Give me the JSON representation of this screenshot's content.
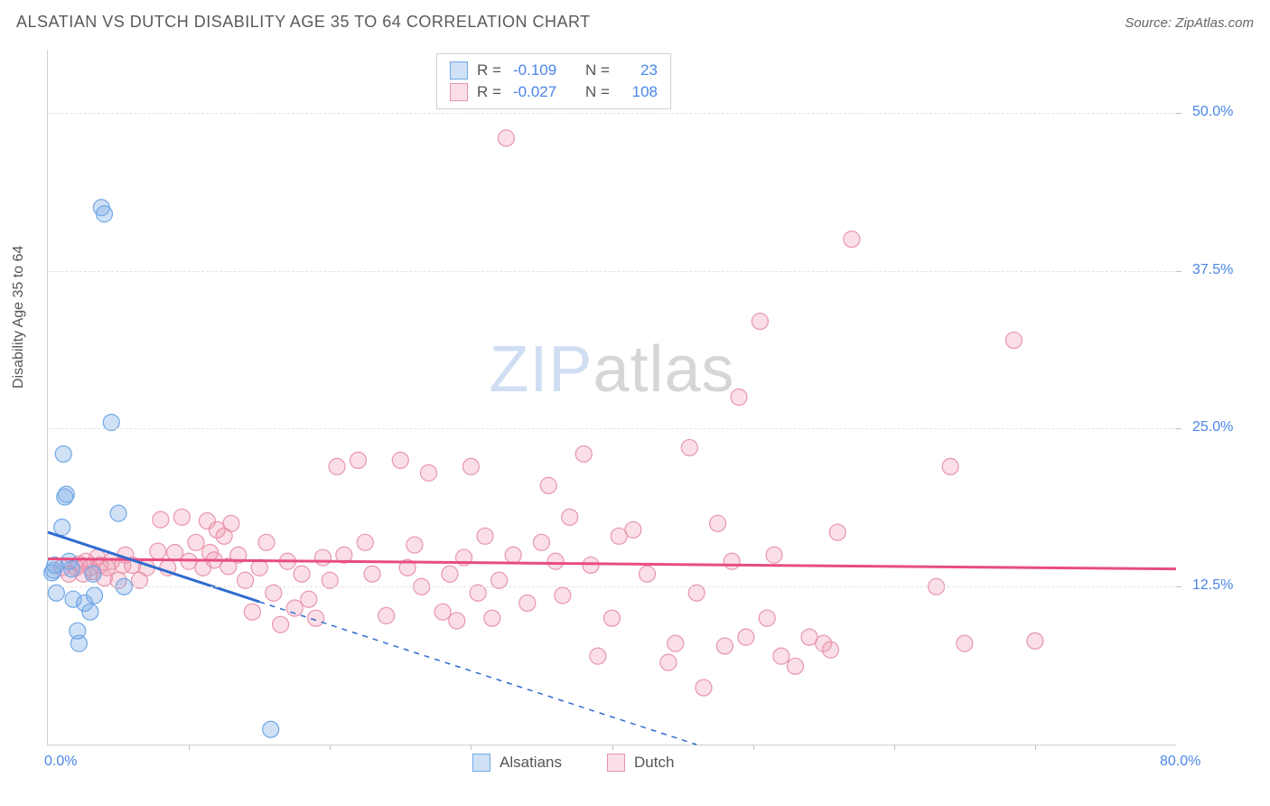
{
  "header": {
    "title": "ALSATIAN VS DUTCH DISABILITY AGE 35 TO 64 CORRELATION CHART",
    "source_prefix": "Source: ",
    "source_name": "ZipAtlas.com"
  },
  "axes": {
    "y_label": "Disability Age 35 to 64",
    "x_min": 0.0,
    "x_max": 80.0,
    "y_min": 0.0,
    "y_max": 55.0,
    "y_ticks": [
      12.5,
      25.0,
      37.5,
      50.0
    ],
    "y_tick_labels": [
      "12.5%",
      "25.0%",
      "37.5%",
      "50.0%"
    ],
    "x_tick_labels_ends": {
      "left": "0.0%",
      "right": "80.0%"
    },
    "x_minor_tick_step": 10.0,
    "grid_color": "#e2e2e2",
    "axis_color": "#d0d0d0",
    "tick_label_color": "#4a86e8",
    "label_fontsize": 16
  },
  "colors": {
    "series_a_fill": "rgba(120,170,230,0.35)",
    "series_a_stroke": "#6fa8e8",
    "series_a_line": "#2e6bd0",
    "series_b_fill": "rgba(240,150,175,0.30)",
    "series_b_stroke": "#e895ac",
    "series_b_line": "#e84d80",
    "background": "#ffffff"
  },
  "marker": {
    "radius": 9,
    "stroke_width": 1.2
  },
  "line": {
    "solid_width": 3,
    "dash_width": 1.5,
    "dash_pattern": "6 6"
  },
  "watermark": {
    "text_a": "ZIP",
    "text_b": "atlas"
  },
  "stats_legend": {
    "rows": [
      {
        "series": "a",
        "R_label": "R =",
        "R_val": "-0.109",
        "N_label": "N =",
        "N_val": "23"
      },
      {
        "series": "b",
        "R_label": "R =",
        "R_val": "-0.027",
        "N_label": "N =",
        "N_val": "108"
      }
    ]
  },
  "bottom_legend": {
    "items": [
      {
        "series": "a",
        "label": "Alsatians"
      },
      {
        "series": "b",
        "label": "Dutch"
      }
    ]
  },
  "series_a": {
    "name": "Alsatians",
    "trend_solid": {
      "x1": 0.0,
      "y1": 16.8,
      "x2": 15.0,
      "y2": 11.3
    },
    "trend_dash": {
      "x1": 15.0,
      "y1": 11.3,
      "x2": 46.0,
      "y2": 0.0
    },
    "points": [
      [
        0.3,
        13.6
      ],
      [
        0.4,
        13.8
      ],
      [
        0.5,
        14.2
      ],
      [
        0.6,
        12.0
      ],
      [
        1.0,
        17.2
      ],
      [
        1.1,
        23.0
      ],
      [
        1.2,
        19.6
      ],
      [
        1.3,
        19.8
      ],
      [
        1.5,
        14.5
      ],
      [
        1.7,
        13.9
      ],
      [
        1.8,
        11.5
      ],
      [
        2.1,
        9.0
      ],
      [
        2.2,
        8.0
      ],
      [
        2.6,
        11.2
      ],
      [
        3.0,
        10.5
      ],
      [
        3.2,
        13.5
      ],
      [
        3.3,
        11.8
      ],
      [
        3.8,
        42.5
      ],
      [
        4.0,
        42.0
      ],
      [
        4.5,
        25.5
      ],
      [
        5.0,
        18.3
      ],
      [
        5.4,
        12.5
      ],
      [
        15.8,
        1.2
      ]
    ]
  },
  "series_b": {
    "name": "Dutch",
    "trend_solid": {
      "x1": 0.0,
      "y1": 14.7,
      "x2": 80.0,
      "y2": 13.9
    },
    "points": [
      [
        1.0,
        14.0
      ],
      [
        1.5,
        13.5
      ],
      [
        2.0,
        14.0
      ],
      [
        2.2,
        14.3
      ],
      [
        2.5,
        13.5
      ],
      [
        2.7,
        14.5
      ],
      [
        3.0,
        14.0
      ],
      [
        3.2,
        13.7
      ],
      [
        3.5,
        14.8
      ],
      [
        3.7,
        14.2
      ],
      [
        4.0,
        13.2
      ],
      [
        4.2,
        14.0
      ],
      [
        4.5,
        14.5
      ],
      [
        5.0,
        13.0
      ],
      [
        5.3,
        14.2
      ],
      [
        5.5,
        15.0
      ],
      [
        6.0,
        14.2
      ],
      [
        6.5,
        13.0
      ],
      [
        7.0,
        14.0
      ],
      [
        7.8,
        15.3
      ],
      [
        8.0,
        17.8
      ],
      [
        8.5,
        14.0
      ],
      [
        9.0,
        15.2
      ],
      [
        9.5,
        18.0
      ],
      [
        10.0,
        14.5
      ],
      [
        10.5,
        16.0
      ],
      [
        11.0,
        14.0
      ],
      [
        11.3,
        17.7
      ],
      [
        11.5,
        15.2
      ],
      [
        11.8,
        14.6
      ],
      [
        12.0,
        17.0
      ],
      [
        12.5,
        16.5
      ],
      [
        12.8,
        14.1
      ],
      [
        13.0,
        17.5
      ],
      [
        13.5,
        15.0
      ],
      [
        14.0,
        13.0
      ],
      [
        14.5,
        10.5
      ],
      [
        15.0,
        14.0
      ],
      [
        15.5,
        16.0
      ],
      [
        16.0,
        12.0
      ],
      [
        16.5,
        9.5
      ],
      [
        17.0,
        14.5
      ],
      [
        17.5,
        10.8
      ],
      [
        18.0,
        13.5
      ],
      [
        18.5,
        11.5
      ],
      [
        19.0,
        10.0
      ],
      [
        19.5,
        14.8
      ],
      [
        20.0,
        13.0
      ],
      [
        20.5,
        22.0
      ],
      [
        21.0,
        15.0
      ],
      [
        22.0,
        22.5
      ],
      [
        22.5,
        16.0
      ],
      [
        23.0,
        13.5
      ],
      [
        24.0,
        10.2
      ],
      [
        25.0,
        22.5
      ],
      [
        25.5,
        14.0
      ],
      [
        26.0,
        15.8
      ],
      [
        26.5,
        12.5
      ],
      [
        27.0,
        21.5
      ],
      [
        28.0,
        10.5
      ],
      [
        28.5,
        13.5
      ],
      [
        29.0,
        9.8
      ],
      [
        29.5,
        14.8
      ],
      [
        30.0,
        22.0
      ],
      [
        30.5,
        12.0
      ],
      [
        31.0,
        16.5
      ],
      [
        31.5,
        10.0
      ],
      [
        32.0,
        13.0
      ],
      [
        32.5,
        48.0
      ],
      [
        33.0,
        15.0
      ],
      [
        34.0,
        11.2
      ],
      [
        35.0,
        16.0
      ],
      [
        35.5,
        20.5
      ],
      [
        36.0,
        14.5
      ],
      [
        36.5,
        11.8
      ],
      [
        37.0,
        18.0
      ],
      [
        38.0,
        23.0
      ],
      [
        38.5,
        14.2
      ],
      [
        39.0,
        7.0
      ],
      [
        40.0,
        10.0
      ],
      [
        40.5,
        16.5
      ],
      [
        41.5,
        17.0
      ],
      [
        42.5,
        13.5
      ],
      [
        44.0,
        6.5
      ],
      [
        44.5,
        8.0
      ],
      [
        45.5,
        23.5
      ],
      [
        46.0,
        12.0
      ],
      [
        46.5,
        4.5
      ],
      [
        47.5,
        17.5
      ],
      [
        48.0,
        7.8
      ],
      [
        48.5,
        14.5
      ],
      [
        49.0,
        27.5
      ],
      [
        49.5,
        8.5
      ],
      [
        50.5,
        33.5
      ],
      [
        51.0,
        10.0
      ],
      [
        51.5,
        15.0
      ],
      [
        52.0,
        7.0
      ],
      [
        53.0,
        6.2
      ],
      [
        54.0,
        8.5
      ],
      [
        55.0,
        8.0
      ],
      [
        55.5,
        7.5
      ],
      [
        56.0,
        16.8
      ],
      [
        57.0,
        40.0
      ],
      [
        63.0,
        12.5
      ],
      [
        64.0,
        22.0
      ],
      [
        65.0,
        8.0
      ],
      [
        68.5,
        32.0
      ],
      [
        70.0,
        8.2
      ]
    ]
  }
}
